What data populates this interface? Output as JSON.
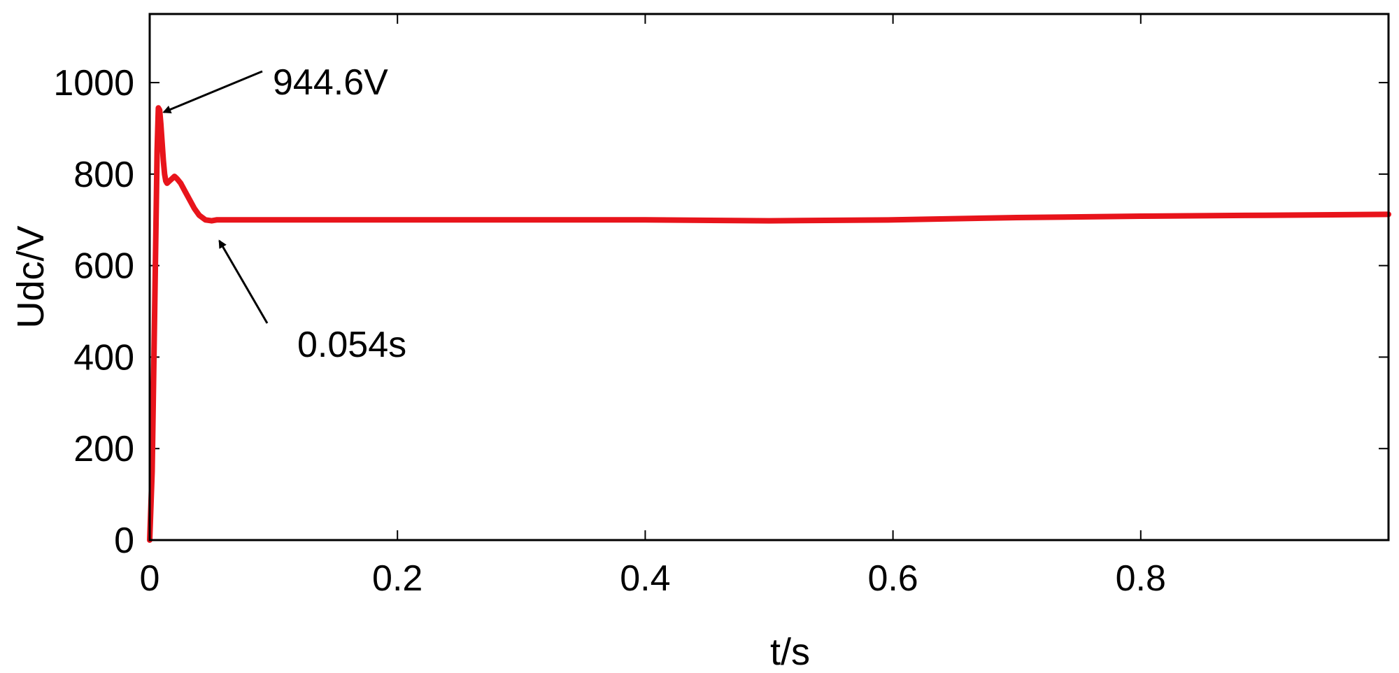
{
  "chart_data": {
    "type": "line",
    "xlabel": "t/s",
    "ylabel": "Udc/V",
    "xlim": [
      0,
      1.0
    ],
    "ylim": [
      0,
      1150
    ],
    "xticks": [
      0,
      0.2,
      0.4,
      0.6,
      0.8
    ],
    "xtick_labels": [
      "0",
      "0.2",
      "0.4",
      "0.6",
      "0.8"
    ],
    "yticks": [
      0,
      200,
      400,
      600,
      800,
      1000
    ],
    "ytick_labels": [
      "0",
      "200",
      "400",
      "600",
      "800",
      "1000"
    ],
    "grid": false,
    "series": [
      {
        "color": "#e8141b",
        "x": [
          0,
          0.002,
          0.004,
          0.006,
          0.007,
          0.008,
          0.009,
          0.01,
          0.011,
          0.012,
          0.013,
          0.014,
          0.016,
          0.018,
          0.02,
          0.022,
          0.025,
          0.028,
          0.032,
          0.036,
          0.04,
          0.045,
          0.05,
          0.054,
          0.06,
          0.1,
          0.2,
          0.3,
          0.4,
          0.5,
          0.6,
          0.7,
          0.8,
          0.9,
          1.0
        ],
        "y": [
          0,
          150,
          500,
          850,
          944.6,
          940,
          910,
          870,
          830,
          800,
          785,
          780,
          785,
          790,
          795,
          790,
          780,
          765,
          745,
          725,
          710,
          700,
          698,
          700,
          700,
          700,
          700,
          700,
          700,
          698,
          700,
          705,
          708,
          710,
          712
        ]
      }
    ],
    "annotations": [
      {
        "text": "944.6V",
        "x": 0.008,
        "y": 944.6
      },
      {
        "text": "0.054s",
        "x": 0.054,
        "y": 700
      }
    ]
  }
}
